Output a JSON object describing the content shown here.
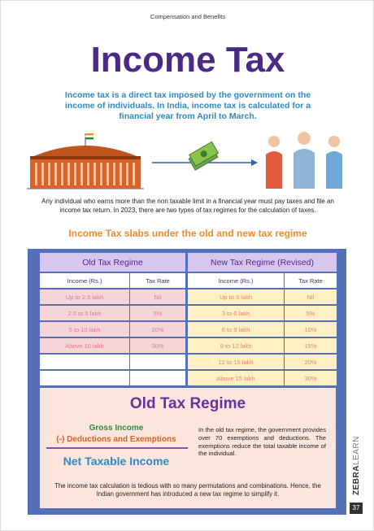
{
  "header": {
    "section": "Compensation and Benefits"
  },
  "title": "Income Tax",
  "intro": "Income tax is a direct tax imposed by the government on the income of individuals. In India, income tax is calculated for a financial year from April to March.",
  "paragraph": "Any individual who earns more than the non taxable limit in a financial year must pay taxes and file an income tax return. In 2023, there are two types of tax regimes for the calculation of taxes.",
  "slabs_heading": "Income Tax slabs under the old and new tax regime",
  "table": {
    "old": {
      "title": "Old Tax Regime",
      "columns": [
        "Income (Rs.)",
        "Tax Rate"
      ],
      "rows": [
        [
          "Up to 2.5 lakh",
          "Nil"
        ],
        [
          "2.5 to 5 lakh",
          "5%"
        ],
        [
          "5 to 10 lakh",
          "20%"
        ],
        [
          "Above 10 lakh",
          "30%"
        ]
      ]
    },
    "new": {
      "title": "New Tax Regime (Revised)",
      "columns": [
        "Income (Rs.)",
        "Tax Rate"
      ],
      "rows": [
        [
          "Up to 3 lakh",
          "Nil"
        ],
        [
          "3 to 6 lakh",
          "5%"
        ],
        [
          "6 to 9 lakh",
          "10%"
        ],
        [
          "9 to 12 lakh",
          "15%"
        ],
        [
          "12 to 15 lakh",
          "20%"
        ],
        [
          "Above 15 lakh",
          "30%"
        ]
      ]
    }
  },
  "old_regime": {
    "title": "Old Tax Regime",
    "formula": {
      "gross": "Gross Income",
      "deductions": "(-) Deductions and Exemptions",
      "net": "Net Taxable Income"
    },
    "description": "In the old tax regime, the government provides over 70 exemptions and deductions. The exemptions reduce the total taxable income of the individual.",
    "note": "The income tax calculation is tedious with so many permutations and combinations. Hence, the Indian government has introduced a new tax regime to simplify it."
  },
  "brand": {
    "bold": "ZEBRA",
    "light": "LEARN"
  },
  "page_number": "37"
}
